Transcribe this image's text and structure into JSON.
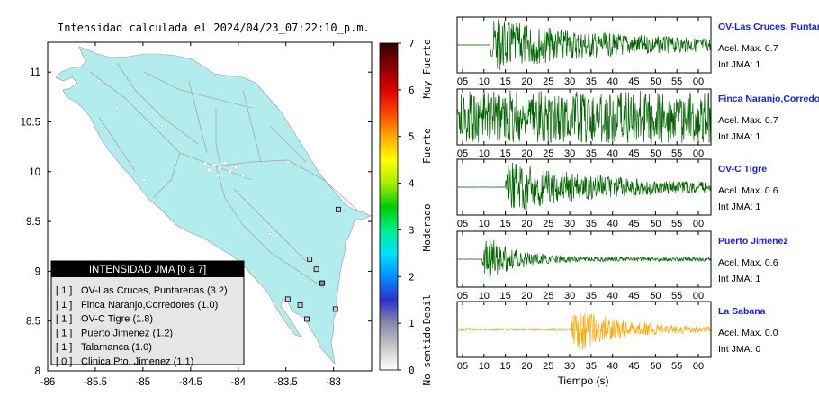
{
  "title": "Intensidad calculada el 2024/04/23_07:22:10_p.m.",
  "map": {
    "xticks": [
      "-86",
      "-85.5",
      "-85",
      "-84.5",
      "-84",
      "-83.5",
      "-83"
    ],
    "yticks": [
      "11",
      "10.5",
      "10",
      "9.5",
      "9",
      "8.5",
      "8"
    ],
    "xlim": [
      -86,
      -82.6
    ],
    "ylim": [
      8,
      11.3
    ],
    "land_color": "#b2ecec",
    "road_color": "#b0b0b0",
    "stations": [
      {
        "lon": -82.95,
        "lat": 9.62
      },
      {
        "lon": -83.25,
        "lat": 9.12
      },
      {
        "lon": -83.18,
        "lat": 9.02
      },
      {
        "lon": -83.12,
        "lat": 8.88
      },
      {
        "lon": -83.48,
        "lat": 8.72
      },
      {
        "lon": -83.35,
        "lat": 8.66
      },
      {
        "lon": -82.98,
        "lat": 8.62
      },
      {
        "lon": -83.28,
        "lat": 8.52
      }
    ],
    "highlighted_station": {
      "lon": -83.12,
      "lat": 8.88
    }
  },
  "legend": {
    "title": "INTENSIDAD JMA [0 a 7]",
    "entries": [
      {
        "jma": "[ 1 ]",
        "text": "OV-Las Cruces, Puntarenas (3.2)"
      },
      {
        "jma": "[ 1 ]",
        "text": "Finca Naranjo,Corredores (1.0)"
      },
      {
        "jma": "[ 1 ]",
        "text": "OV-C Tigre (1.8)"
      },
      {
        "jma": "[ 1 ]",
        "text": "Puerto Jimenez (1.2)"
      },
      {
        "jma": "[ 1 ]",
        "text": "Talamanca (1.0)"
      },
      {
        "jma": "[ 0 ]",
        "text": "Clinica Pto. Jimenez (1.1)"
      }
    ]
  },
  "colorbar": {
    "ticks": [
      "7",
      "6",
      "5",
      "4",
      "3",
      "2",
      "1",
      "0"
    ],
    "range": [
      0,
      7
    ],
    "labels": [
      "Muy Fuerte",
      "Fuerte",
      "Moderado",
      "Debil",
      "No sentido"
    ],
    "colors": [
      "#ffffff",
      "#c8c8c8",
      "#8888aa",
      "#3030cc",
      "#0090ff",
      "#00e0ff",
      "#00ee88",
      "#00cc00",
      "#aaee00",
      "#ffff00",
      "#ffaa00",
      "#ff4400",
      "#dd0000",
      "#880000",
      "#330000"
    ]
  },
  "seismograms": {
    "xtick_labels": [
      "05",
      "10",
      "15",
      "20",
      "25",
      "30",
      "35",
      "40",
      "45",
      "50",
      "55",
      "00"
    ],
    "xlabel": "Tiempo (s)",
    "panels": [
      {
        "station": "OV-Las Cruces, Puntarenas",
        "acel": "Acel. Max. 0.7",
        "jma": "Int JMA: 1",
        "color": "#006400",
        "onset": 0.13,
        "peak": 0.95,
        "decay": 0.45,
        "pre": 0.005,
        "tail": 0.12
      },
      {
        "station": "Finca Naranjo,Corredores",
        "acel": "Acel. Max. 0.7",
        "jma": "Int JMA: 1",
        "color": "#006400",
        "onset": 0.0,
        "peak": 0.65,
        "decay": 4.0,
        "pre": 0.6,
        "tail": 0.55
      },
      {
        "station": "OV-C Tigre",
        "acel": "Acel. Max. 0.6",
        "jma": "Int JMA: 1",
        "color": "#006400",
        "onset": 0.19,
        "peak": 0.95,
        "decay": 0.35,
        "pre": 0.005,
        "tail": 0.12
      },
      {
        "station": "Puerto Jimenez",
        "acel": "Acel. Max. 0.6",
        "jma": "Int JMA: 1",
        "color": "#006400",
        "onset": 0.1,
        "peak": 0.95,
        "decay": 0.12,
        "pre": 0.005,
        "tail": 0.08
      },
      {
        "station": "La Sabana",
        "acel": "Acel. Max. 0.0",
        "jma": "Int JMA: 0",
        "color": "#ffa500",
        "onset": 0.45,
        "peak": 0.95,
        "decay": 0.18,
        "pre": 0.05,
        "tail": 0.06
      }
    ]
  }
}
